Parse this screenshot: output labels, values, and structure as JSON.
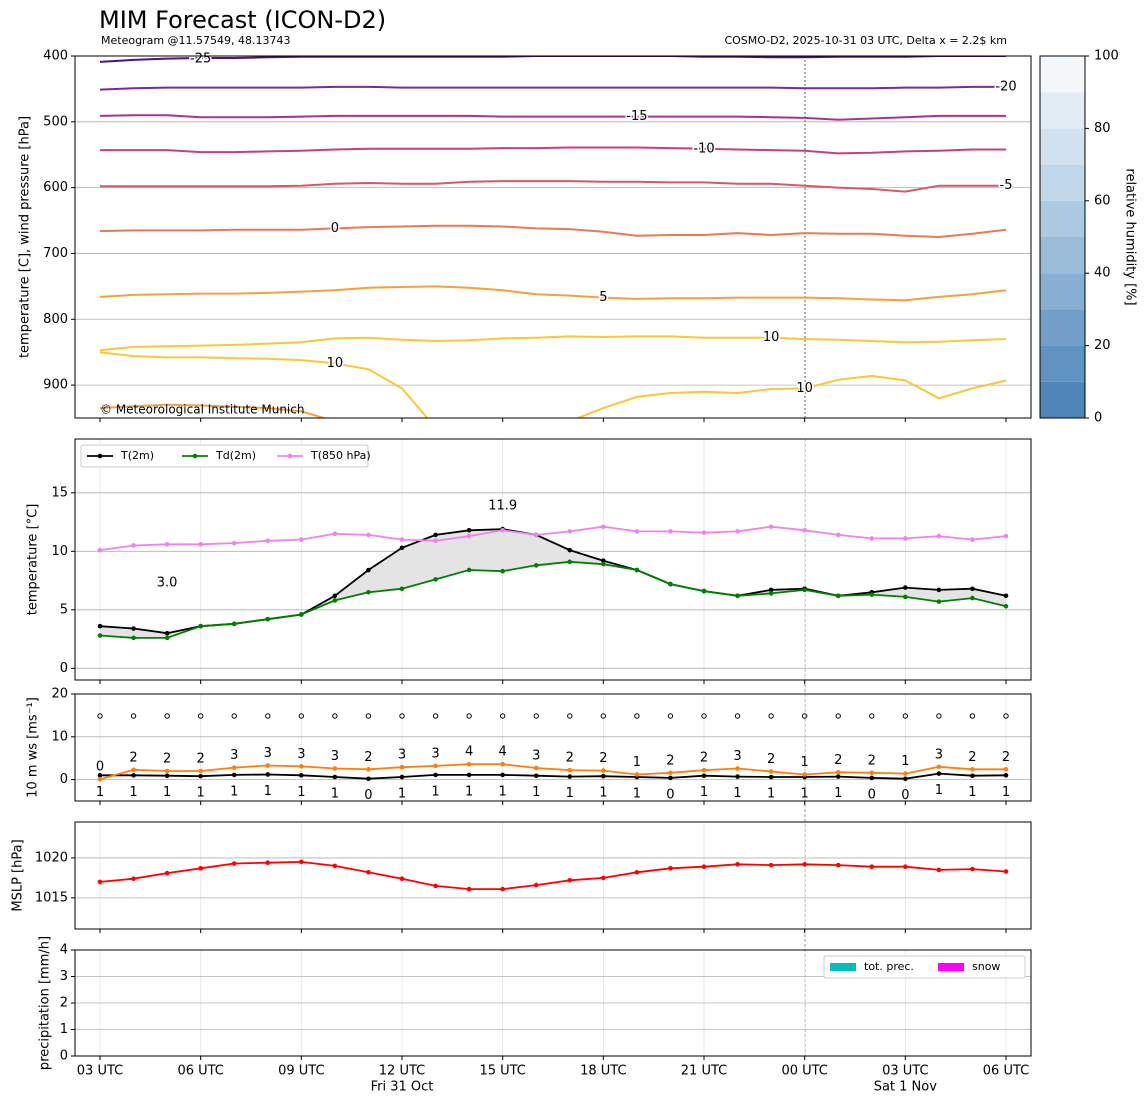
{
  "chart_data": [
    {
      "type": "contour",
      "title": "MIM Forecast (ICON-D2)",
      "subtitle": "Meteogram @11.57549, 48.13743",
      "run_info": "COSMO-D2, 2025-10-31 03 UTC, Delta x = 2.2$ km",
      "credit": "© Meteorological Institute Munich",
      "ylabel": "temperature [C], wind pressure [hPa]",
      "ylim": [
        950,
        400
      ],
      "yticks": [
        400,
        500,
        600,
        700,
        800,
        900
      ],
      "grid": true,
      "series": [
        {
          "name": "-25",
          "color": "#4a1486",
          "values": [
            409,
            406,
            404,
            403,
            403,
            402,
            401,
            401,
            401,
            401,
            401,
            401,
            401,
            400,
            400,
            400,
            400,
            400,
            401,
            401,
            402,
            402,
            401,
            401,
            401,
            400,
            400,
            400
          ]
        },
        {
          "name": "-20",
          "color": "#7b2a9e",
          "values": [
            451,
            449,
            448,
            448,
            448,
            448,
            448,
            447,
            447,
            448,
            448,
            448,
            448,
            448,
            448,
            448,
            448,
            448,
            448,
            448,
            448,
            449,
            449,
            449,
            448,
            448,
            447,
            447
          ]
        },
        {
          "name": "-15",
          "color": "#a7329a",
          "values": [
            491,
            490,
            490,
            493,
            493,
            493,
            492,
            491,
            491,
            491,
            491,
            491,
            492,
            492,
            492,
            492,
            492,
            492,
            492,
            492,
            493,
            494,
            497,
            495,
            493,
            491,
            491,
            491
          ]
        },
        {
          "name": "-10",
          "color": "#c83f7e",
          "values": [
            543,
            543,
            543,
            546,
            546,
            545,
            544,
            542,
            541,
            541,
            541,
            541,
            540,
            540,
            539,
            539,
            539,
            540,
            541,
            542,
            543,
            544,
            548,
            547,
            545,
            544,
            542,
            542
          ]
        },
        {
          "name": "-5",
          "color": "#da5769",
          "values": [
            598,
            598,
            598,
            598,
            598,
            598,
            597,
            594,
            593,
            594,
            594,
            591,
            590,
            590,
            590,
            591,
            591,
            592,
            592,
            594,
            594,
            597,
            600,
            602,
            606,
            597,
            597,
            597
          ]
        },
        {
          "name": "0",
          "color": "#ea7a52",
          "values": [
            666,
            665,
            665,
            665,
            664,
            664,
            664,
            662,
            660,
            659,
            658,
            658,
            659,
            662,
            663,
            667,
            673,
            672,
            672,
            669,
            672,
            669,
            670,
            670,
            673,
            675,
            670,
            664
          ]
        },
        {
          "name": "5",
          "color": "#f6a03c",
          "values": [
            766,
            763,
            762,
            761,
            761,
            760,
            758,
            756,
            752,
            751,
            750,
            752,
            756,
            762,
            764,
            767,
            769,
            768,
            768,
            767,
            767,
            767,
            768,
            770,
            771,
            766,
            762,
            756
          ]
        },
        {
          "name": "10",
          "color": "#fbc735",
          "values": [
            847,
            842,
            841,
            840,
            839,
            837,
            835,
            829,
            828,
            831,
            833,
            832,
            829,
            828,
            826,
            827,
            826,
            826,
            828,
            828,
            828,
            830,
            831,
            833,
            835,
            834,
            832,
            830
          ]
        },
        {
          "name": "10",
          "color": "#fbc735",
          "values": [
            850,
            856,
            858,
            858,
            859,
            860,
            862,
            867,
            876,
            905,
            965,
            null,
            null,
            null,
            null,
            null,
            null,
            null,
            null,
            null,
            null,
            null,
            null,
            null,
            null,
            null,
            null,
            null
          ]
        },
        {
          "name": "10",
          "color": "#fbc735",
          "values": [
            null,
            null,
            null,
            null,
            null,
            null,
            null,
            null,
            null,
            null,
            null,
            null,
            null,
            null,
            955,
            935,
            918,
            912,
            910,
            912,
            906,
            905,
            892,
            886,
            893,
            920,
            905,
            893
          ]
        },
        {
          "color": "#f6a03c",
          "values": [
            935,
            932,
            930,
            931,
            933,
            935,
            940,
            955,
            null,
            null,
            null,
            null,
            null,
            null,
            null,
            null,
            null,
            null,
            null,
            null,
            null,
            null,
            null,
            null,
            null,
            null,
            null,
            null
          ]
        }
      ],
      "colorbar": {
        "label": "relative humidity [%]",
        "lim": [
          0,
          100
        ],
        "ticks": [
          0,
          20,
          40,
          60,
          80,
          100
        ],
        "colors": [
          "#4f86b9",
          "#6093c2",
          "#729fc9",
          "#88afd2",
          "#9bbcd9",
          "#aecae1",
          "#c0d6e9",
          "#d2e1f0",
          "#e2ecf5",
          "#f4f8fb"
        ]
      }
    },
    {
      "type": "line",
      "ylabel": "temperature [°C]",
      "ylim": [
        -1,
        19.6
      ],
      "yticks": [
        0,
        5,
        10,
        15
      ],
      "grid": true,
      "legend": "upper left",
      "fill_between": "#e4e4e4",
      "min_label_color": "blue",
      "max_label_color": "red",
      "series": [
        {
          "name": "T(2m)",
          "color": "#000000",
          "values": [
            3.6,
            3.4,
            3.0,
            3.6,
            3.8,
            4.2,
            4.6,
            6.2,
            8.4,
            10.3,
            11.4,
            11.8,
            11.9,
            11.4,
            10.1,
            9.2,
            8.4,
            7.2,
            6.6,
            6.2,
            6.7,
            6.8,
            6.2,
            6.5,
            6.9,
            6.7,
            6.8,
            6.2
          ],
          "value_labels": [
            null,
            null,
            "3.0",
            null,
            null,
            null,
            null,
            null,
            null,
            null,
            null,
            null,
            "11.9",
            null,
            null,
            null,
            null,
            null,
            null,
            null,
            null,
            null,
            null,
            null,
            null,
            null,
            null,
            null
          ]
        },
        {
          "name": "Td(2m)",
          "color": "#008000",
          "values": [
            2.8,
            2.6,
            2.6,
            3.6,
            3.8,
            4.2,
            4.6,
            5.8,
            6.5,
            6.8,
            7.6,
            8.4,
            8.3,
            8.8,
            9.1,
            8.9,
            8.4,
            7.2,
            6.6,
            6.2,
            6.4,
            6.7,
            6.2,
            6.3,
            6.1,
            5.7,
            6.0,
            5.3
          ]
        },
        {
          "name": "T(850 hPa)",
          "color": "#ee82ee",
          "values": [
            10.1,
            10.5,
            10.6,
            10.6,
            10.7,
            10.9,
            11.0,
            11.5,
            11.4,
            11.0,
            10.9,
            11.3,
            11.8,
            11.4,
            11.7,
            12.1,
            11.7,
            11.7,
            11.6,
            11.7,
            12.1,
            11.8,
            11.4,
            11.1,
            11.1,
            11.3,
            11.0,
            11.3
          ]
        }
      ]
    },
    {
      "type": "line",
      "ylabel": "10 m ws [ms⁻¹]",
      "ylim": [
        -5,
        20
      ],
      "yticks": [
        0,
        10,
        20
      ],
      "grid": true,
      "series": [
        {
          "color": "#000000",
          "label_position": "below",
          "values": [
            1.0,
            1.0,
            0.9,
            0.8,
            1.1,
            1.2,
            1.0,
            0.6,
            0.2,
            0.6,
            1.1,
            1.1,
            1.1,
            0.9,
            0.7,
            0.8,
            0.6,
            0.4,
            0.9,
            0.7,
            0.6,
            0.6,
            0.7,
            0.4,
            0.2,
            1.4,
            0.9,
            1.0
          ],
          "value_labels": [
            "1",
            "1",
            "1",
            "1",
            "1",
            "1",
            "1",
            "1",
            "0",
            "1",
            "1",
            "1",
            "1",
            "1",
            "1",
            "1",
            "1",
            "0",
            "1",
            "1",
            "1",
            "1",
            "1",
            "0",
            "0",
            "1",
            "1",
            "1"
          ]
        },
        {
          "color": "#ff7f0e",
          "label_position": "above",
          "values": [
            0.1,
            2.3,
            2.0,
            2.0,
            2.8,
            3.3,
            3.1,
            2.6,
            2.4,
            2.9,
            3.2,
            3.6,
            3.6,
            2.7,
            2.2,
            2.1,
            1.2,
            1.6,
            2.2,
            2.6,
            1.9,
            1.2,
            1.7,
            1.6,
            1.4,
            3.0,
            2.4,
            2.4
          ],
          "value_labels": [
            "0",
            "2",
            "2",
            "2",
            "3",
            "3",
            "3",
            "3",
            "2",
            "3",
            "3",
            "4",
            "4",
            "3",
            "2",
            "2",
            "1",
            "2",
            "2",
            "3",
            "2",
            "1",
            "2",
            "2",
            "1",
            "3",
            "2",
            "2"
          ]
        }
      ]
    },
    {
      "type": "line",
      "ylabel": "MSLP [hPa]",
      "ylim": [
        1011.1,
        1024.5
      ],
      "yticks": [
        1015,
        1020
      ],
      "grid": true,
      "series": [
        {
          "color": "#ff0000",
          "values": [
            1017.0,
            1017.4,
            1018.1,
            1018.7,
            1019.3,
            1019.4,
            1019.5,
            1019.0,
            1018.2,
            1017.4,
            1016.5,
            1016.1,
            1016.1,
            1016.6,
            1017.2,
            1017.5,
            1018.2,
            1018.7,
            1018.9,
            1019.2,
            1019.1,
            1019.2,
            1019.1,
            1018.9,
            1018.9,
            1018.5,
            1018.6,
            1018.3
          ]
        }
      ]
    },
    {
      "type": "bar",
      "ylabel": "precipitation [mm/h]",
      "ylim": [
        0,
        4
      ],
      "yticks": [
        0,
        1,
        2,
        3,
        4
      ],
      "grid": true,
      "legend": "upper right",
      "categories": [
        "03 UTC",
        null,
        null,
        "06 UTC",
        null,
        null,
        "09 UTC",
        null,
        null,
        "12 UTC",
        null,
        null,
        "15 UTC",
        null,
        null,
        "18 UTC",
        null,
        null,
        "21 UTC",
        null,
        null,
        "00 UTC",
        null,
        null,
        "03 UTC",
        null,
        null,
        "06 UTC"
      ],
      "dates": [
        null,
        null,
        null,
        null,
        null,
        null,
        null,
        null,
        null,
        "Fri 31 Oct",
        null,
        null,
        null,
        null,
        null,
        null,
        null,
        null,
        null,
        null,
        null,
        null,
        null,
        null,
        "Sat 1 Nov",
        null,
        null,
        null
      ],
      "series": [
        {
          "name": "tot. prec.",
          "color": "#00bfbf",
          "values": [
            0,
            0,
            0,
            0,
            0,
            0,
            0,
            0,
            0,
            0,
            0,
            0,
            0,
            0,
            0,
            0,
            0,
            0,
            0,
            0,
            0,
            0,
            0,
            0,
            0,
            0,
            0,
            0
          ]
        },
        {
          "name": "snow",
          "color": "#ff00ff",
          "values": [
            0,
            0,
            0,
            0,
            0,
            0,
            0,
            0,
            0,
            0,
            0,
            0,
            0,
            0,
            0,
            0,
            0,
            0,
            0,
            0,
            0,
            0,
            0,
            0,
            0,
            0,
            0,
            0
          ]
        }
      ]
    }
  ]
}
